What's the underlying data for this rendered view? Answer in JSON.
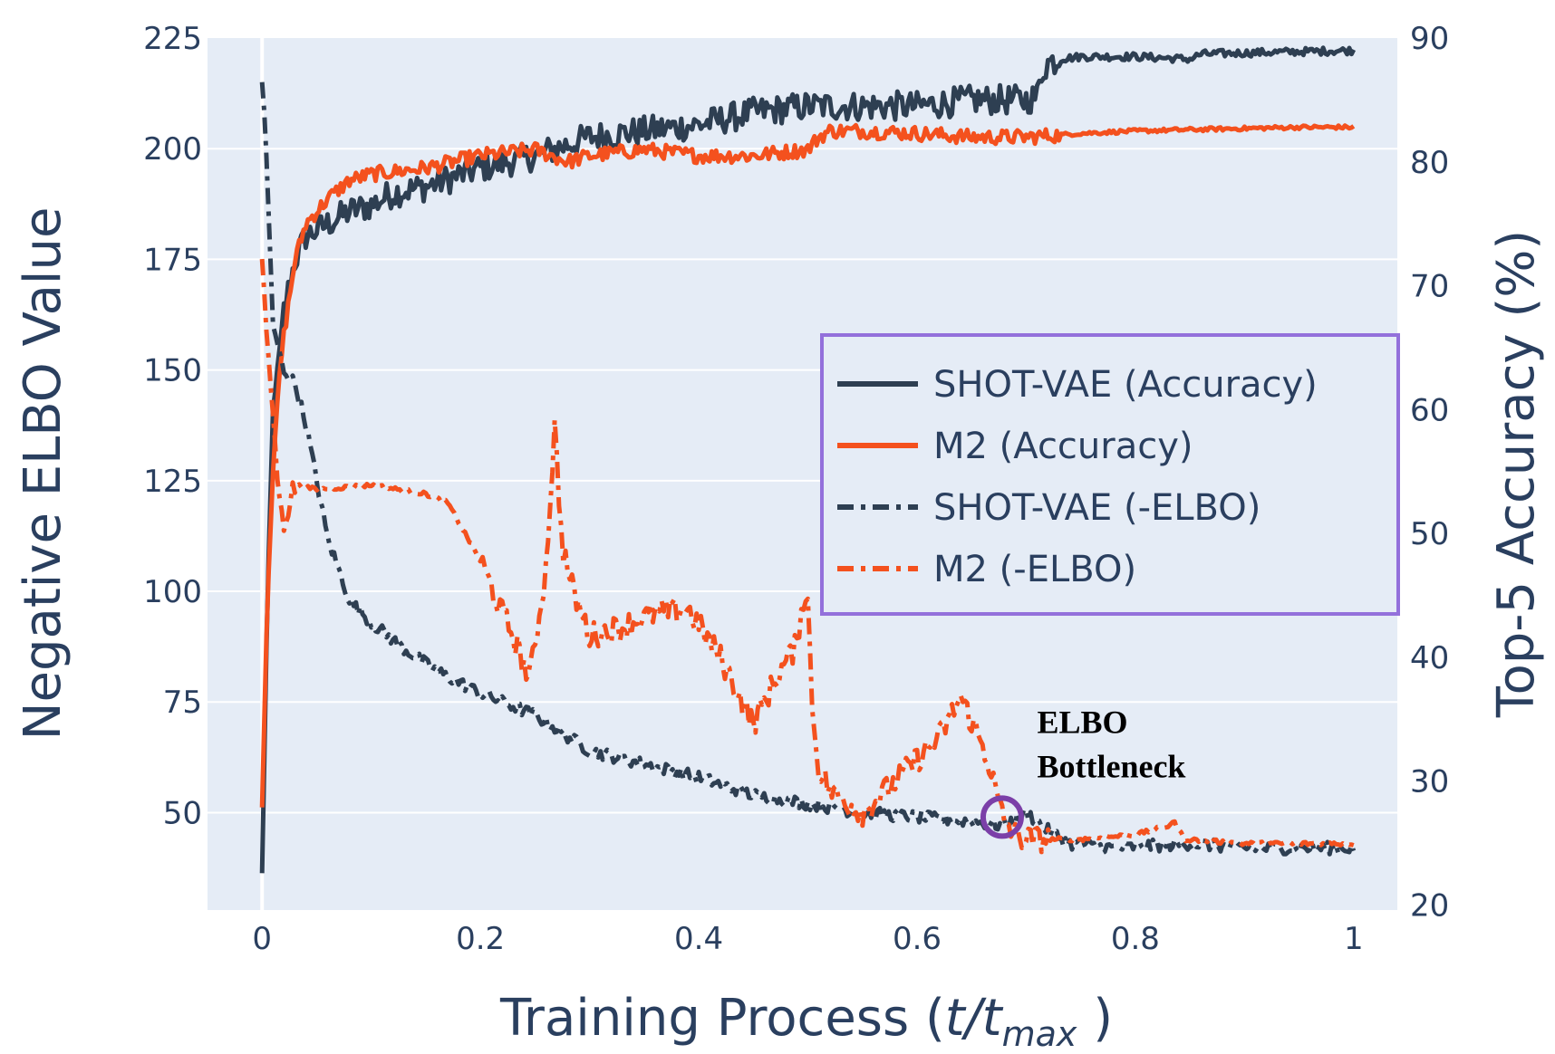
{
  "chart_data": {
    "type": "line",
    "xlabel": "Training Process (t/t_max )",
    "xlabel_parts": {
      "prefix": "Training Process (",
      "t": "t",
      "slash": "/",
      "t2": "t",
      "sub": "max",
      "suffix": " )"
    },
    "ylabel_left": "Negative ELBO Value",
    "ylabel_right": "Top-5 Accuracy (%)",
    "xlim": [
      -0.05,
      1.04
    ],
    "ylim_left": [
      28,
      225
    ],
    "ylim_right": [
      19.6,
      90
    ],
    "x_ticks": [
      0,
      0.2,
      0.4,
      0.6,
      0.8,
      1
    ],
    "x_tick_labels": [
      "0",
      "0.2",
      "0.4",
      "0.6",
      "0.8",
      "1"
    ],
    "y_left_ticks": [
      50,
      75,
      100,
      125,
      150,
      175,
      200,
      225
    ],
    "y_left_tick_labels": [
      "50",
      "75",
      "100",
      "125",
      "150",
      "175",
      "200",
      "225"
    ],
    "y_right_ticks": [
      20,
      30,
      40,
      50,
      60,
      70,
      80,
      90
    ],
    "y_right_tick_labels": [
      "20",
      "30",
      "40",
      "50",
      "60",
      "70",
      "80",
      "90"
    ],
    "grid": true,
    "legend_position": "center-right",
    "series": [
      {
        "name": "SHOT-VAE (Accuracy)",
        "axis": "right",
        "color": "#2e3f52",
        "dash": "solid",
        "noise": 1.2,
        "x": [
          0,
          0.005,
          0.01,
          0.02,
          0.03,
          0.04,
          0.06,
          0.08,
          0.1,
          0.12,
          0.15,
          0.2,
          0.25,
          0.3,
          0.35,
          0.4,
          0.45,
          0.5,
          0.55,
          0.6,
          0.65,
          0.7,
          0.71,
          0.715,
          0.72,
          0.73,
          0.75,
          0.8,
          0.85,
          0.86,
          0.9,
          0.95,
          1.0
        ],
        "y": [
          22.5,
          45,
          60,
          68,
          72,
          74,
          75,
          76,
          76.5,
          77.5,
          78,
          79.5,
          80.5,
          82,
          82.5,
          83,
          84,
          84.5,
          84.5,
          84.5,
          85,
          85,
          85.3,
          87.5,
          88,
          88.3,
          88.5,
          88.5,
          88.3,
          88.7,
          88.8,
          88.9,
          89
        ]
      },
      {
        "name": "M2 (Accuracy)",
        "axis": "right",
        "color": "#f4511e",
        "dash": "solid",
        "noise": 0.6,
        "x": [
          0,
          0.005,
          0.01,
          0.015,
          0.02,
          0.03,
          0.04,
          0.06,
          0.08,
          0.1,
          0.15,
          0.2,
          0.25,
          0.28,
          0.3,
          0.35,
          0.4,
          0.45,
          0.5,
          0.51,
          0.52,
          0.55,
          0.6,
          0.65,
          0.7,
          0.75,
          0.8,
          0.85,
          0.9,
          0.95,
          1.0
        ],
        "y": [
          28,
          45,
          55,
          62,
          66,
          72,
          75,
          77,
          78.5,
          79,
          79.5,
          80.5,
          81,
          80,
          80.5,
          81,
          80.5,
          80.5,
          81,
          82,
          82.5,
          82.5,
          82.3,
          82,
          82,
          82.3,
          82.5,
          82.6,
          82.7,
          82.8,
          82.8
        ]
      },
      {
        "name": "SHOT-VAE (-ELBO)",
        "axis": "left",
        "color": "#2e3f52",
        "dash": "dashdot",
        "noise": 1.4,
        "x": [
          0,
          0.003,
          0.006,
          0.01,
          0.015,
          0.02,
          0.03,
          0.04,
          0.05,
          0.06,
          0.07,
          0.08,
          0.1,
          0.13,
          0.16,
          0.2,
          0.25,
          0.3,
          0.35,
          0.4,
          0.45,
          0.5,
          0.55,
          0.6,
          0.65,
          0.68,
          0.7,
          0.72,
          0.74,
          0.78,
          0.85,
          0.9,
          0.95,
          1.0
        ],
        "y": [
          215,
          205,
          185,
          160,
          155,
          150,
          147,
          138,
          125,
          112,
          105,
          98,
          93,
          87,
          82,
          77,
          72,
          64,
          61,
          58,
          54,
          52,
          50,
          49,
          48,
          47,
          50,
          46,
          43,
          42,
          43,
          42,
          42,
          42
        ]
      },
      {
        "name": "M2 (-ELBO)",
        "axis": "left",
        "color": "#f4511e",
        "dash": "dashdot",
        "noise": 3.0,
        "x": [
          0,
          0.005,
          0.01,
          0.015,
          0.02,
          0.03,
          0.05,
          0.1,
          0.15,
          0.17,
          0.2,
          0.22,
          0.23,
          0.245,
          0.25,
          0.26,
          0.268,
          0.275,
          0.285,
          0.3,
          0.33,
          0.36,
          0.39,
          0.42,
          0.44,
          0.45,
          0.47,
          0.49,
          0.495,
          0.5,
          0.505,
          0.51,
          0.52,
          0.55,
          0.58,
          0.6,
          0.62,
          0.64,
          0.655,
          0.665,
          0.675,
          0.68,
          0.69,
          0.7,
          0.75,
          0.8,
          0.83,
          0.835,
          0.845,
          0.9,
          0.95,
          1.0
        ],
        "y": [
          175,
          155,
          140,
          122,
          116,
          124,
          123,
          124,
          122,
          120,
          107,
          95,
          90,
          80,
          88,
          105,
          137,
          110,
          100,
          90,
          92,
          95,
          96,
          85,
          75,
          70,
          80,
          88,
          99,
          97,
          70,
          60,
          55,
          50,
          57,
          62,
          67,
          76,
          68,
          62,
          52,
          48,
          45,
          44,
          44,
          45,
          47,
          48,
          44,
          43,
          43,
          43
        ]
      }
    ],
    "annotations": [
      {
        "text": "ELBO",
        "x": 0.71,
        "y": 68
      },
      {
        "text": "Bottleneck",
        "x": 0.71,
        "y": 58
      }
    ],
    "marker": {
      "name": "bottleneck-circle",
      "x": 0.678,
      "y": 49,
      "color": "#7b3fa8"
    },
    "colors": {
      "plot_bg": "#e5ecf6",
      "grid": "#ffffff",
      "text": "#2a3f5f",
      "legend_border": "#9370db",
      "dark_series": "#2e3f52",
      "orange_series": "#f4511e"
    }
  }
}
